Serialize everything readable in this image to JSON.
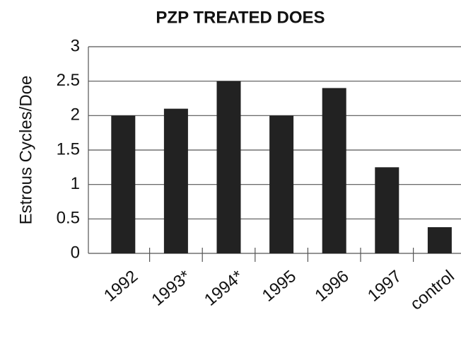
{
  "chart_data": {
    "type": "bar",
    "title": "PZP TREATED DOES",
    "y_label": "Estrous Cycles/Doe",
    "categories": [
      "1992",
      "1993*",
      "1994*",
      "1995",
      "1996",
      "1997",
      "control"
    ],
    "values": [
      2.0,
      2.1,
      2.5,
      2.0,
      2.4,
      1.25,
      0.38
    ],
    "color": "#222222",
    "ylim": [
      0,
      3
    ],
    "yticks": [
      0,
      0.5,
      1,
      1.5,
      2,
      2.5,
      3
    ],
    "grid": true
  }
}
